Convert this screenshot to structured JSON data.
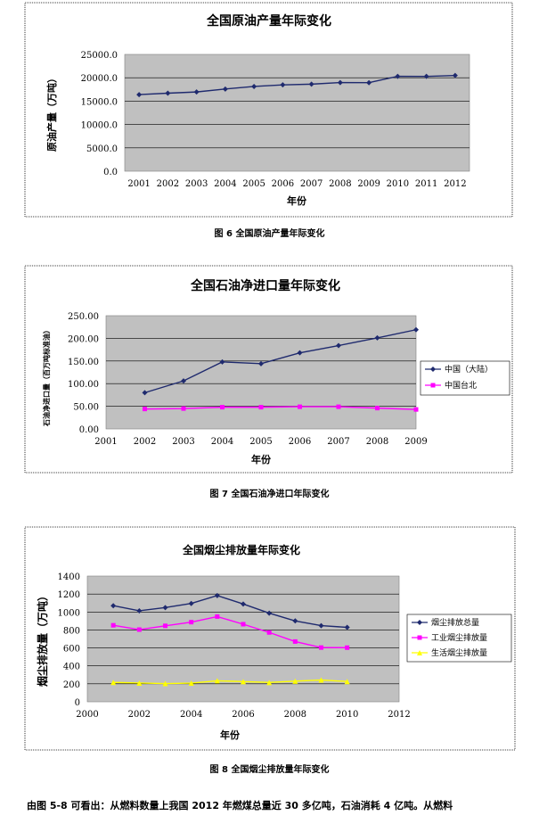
{
  "chart_data": [
    {
      "type": "line",
      "title": "全国原油产量年际变化",
      "xlabel": "年份",
      "ylabel": "原油产量（万吨）",
      "categories": [
        "2001",
        "2002",
        "2003",
        "2004",
        "2005",
        "2006",
        "2007",
        "2008",
        "2009",
        "2010",
        "2011",
        "2012"
      ],
      "series": [
        {
          "values": [
            16400,
            16700,
            16960,
            17590,
            18135,
            18480,
            18630,
            18970,
            18950,
            20300,
            20290,
            20500
          ]
        }
      ],
      "ylim": [
        0,
        25000
      ],
      "yticks": [
        "0.0",
        "5000.0",
        "10000.0",
        "15000.0",
        "20000.0",
        "25000.0"
      ],
      "grid": true,
      "colors": {
        "line": "#1f2a6e",
        "plot_bg": "#c0c0c0"
      }
    },
    {
      "type": "line",
      "title": "全国石油净进口量年际变化",
      "xlabel": "年份",
      "ylabel": "石油净进口量（百万吨标准油）",
      "categories": [
        "2001",
        "2002",
        "2003",
        "2004",
        "2005",
        "2006",
        "2007",
        "2008",
        "2009"
      ],
      "series": [
        {
          "name": "中国（大陆）",
          "values": [
            null,
            80,
            106,
            148,
            144,
            168,
            184,
            201,
            219
          ]
        },
        {
          "name": "中国台北",
          "values": [
            null,
            44,
            45,
            48,
            48,
            49,
            49,
            46,
            43
          ]
        }
      ],
      "ylim": [
        0,
        250
      ],
      "yticks": [
        "0.00",
        "50.00",
        "100.00",
        "150.00",
        "200.00",
        "250.00"
      ],
      "grid": true,
      "legend": "right",
      "colors": {
        "series1": "#1f2a6e",
        "series2": "#ff00ff",
        "plot_bg": "#c0c0c0"
      }
    },
    {
      "type": "line",
      "title": "全国烟尘排放量年际变化",
      "xlabel": "年份",
      "ylabel": "烟尘排放量（万吨）",
      "x": [
        2001,
        2002,
        2003,
        2004,
        2005,
        2006,
        2007,
        2008,
        2009,
        2010
      ],
      "xticks": [
        "2000",
        "2002",
        "2004",
        "2006",
        "2008",
        "2010",
        "2012"
      ],
      "xlim": [
        2000,
        2012
      ],
      "series": [
        {
          "name": "烟尘排放总量",
          "values": [
            1070,
            1013,
            1049,
            1095,
            1183,
            1089,
            987,
            901,
            848,
            829
          ]
        },
        {
          "name": "工业烟尘排放量",
          "values": [
            852,
            804,
            846,
            887,
            949,
            864,
            772,
            671,
            604,
            603
          ]
        },
        {
          "name": "生活烟尘排放量",
          "values": [
            216,
            209,
            203,
            208,
            234,
            225,
            215,
            230,
            243,
            226
          ]
        }
      ],
      "ylim": [
        0,
        1400
      ],
      "yticks": [
        "0",
        "200",
        "400",
        "600",
        "800",
        "1000",
        "1200",
        "1400"
      ],
      "grid": true,
      "legend": "right",
      "colors": {
        "series1": "#1f2a6e",
        "series2": "#ff00ff",
        "series3": "#ffff00",
        "plot_bg": "#c0c0c0"
      }
    }
  ],
  "captions": {
    "fig6": "图 6 全国原油产量年际变化",
    "fig7": "图 7 全国石油净进口年际变化",
    "fig8": "图 8 全国烟尘排放量年际变化"
  },
  "body_text": "由图 5-8 可看出：从燃料数量上我国 2012 年燃煤总量近 30 多亿吨，石油消耗 4 亿吨。从燃料"
}
